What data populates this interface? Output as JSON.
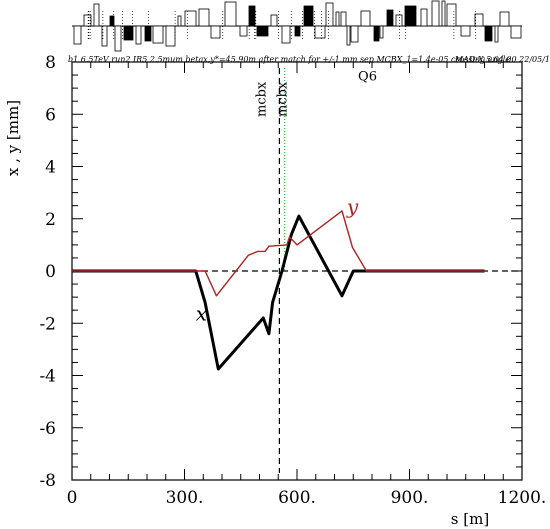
{
  "chart_data": {
    "type": "line",
    "header": "b1 6.5TeV run2 IR5 2.5mum betax,y*=45.90m after match for +/-1 mm sep MCBX_1=1.4e-05 crossing angle",
    "program": "MAD-X 5.04.00  22/05/1",
    "xlabel": "s [m]",
    "ylabel": "x , y [mm]",
    "xlim": [
      0,
      1200
    ],
    "ylim": [
      -8,
      8
    ],
    "x_ticks": [
      0,
      300,
      600,
      900,
      1200
    ],
    "x_tick_labels": [
      "0",
      "300.",
      "600.",
      "900.",
      "1200."
    ],
    "y_ticks": [
      -8,
      -6,
      -4,
      -2,
      0,
      2,
      4,
      6,
      8
    ],
    "y_tick_labels": [
      "-8",
      "-6",
      "-4",
      "-2",
      "0",
      "2",
      "4",
      "6",
      "8"
    ],
    "markers": [
      {
        "label": "mcbx",
        "s": 553,
        "style": "dashed",
        "color": "#000000"
      },
      {
        "label": "mcbx",
        "s": 567,
        "style": "dotted",
        "color": "#2ecc40"
      }
    ],
    "annotations": [
      {
        "text": "Q6",
        "s": 788,
        "y": 7.3
      }
    ],
    "series": [
      {
        "name": "x",
        "color": "#000000",
        "label_at": [
          330,
          -1.9
        ],
        "points": [
          [
            0,
            0
          ],
          [
            330,
            0
          ],
          [
            355,
            -1.2
          ],
          [
            390,
            -3.75
          ],
          [
            510,
            -1.8
          ],
          [
            525,
            -2.4
          ],
          [
            535,
            -1.2
          ],
          [
            560,
            0
          ],
          [
            585,
            1.4
          ],
          [
            605,
            2.1
          ],
          [
            720,
            -0.95
          ],
          [
            750,
            0
          ],
          [
            1100,
            0
          ]
        ]
      },
      {
        "name": "y",
        "color": "#b22222",
        "label_at": [
          733,
          2.2
        ],
        "points": [
          [
            0,
            0
          ],
          [
            355,
            0
          ],
          [
            385,
            -0.95
          ],
          [
            470,
            0.6
          ],
          [
            495,
            0.75
          ],
          [
            515,
            0.75
          ],
          [
            525,
            0.95
          ],
          [
            573,
            1.0
          ],
          [
            580,
            1.3
          ],
          [
            600,
            1.0
          ],
          [
            720,
            2.3
          ],
          [
            748,
            0.9
          ],
          [
            785,
            0
          ],
          [
            1100,
            0
          ]
        ]
      }
    ],
    "reference_lines": {
      "horizontal_y": 0,
      "vertical_s": 553
    }
  }
}
